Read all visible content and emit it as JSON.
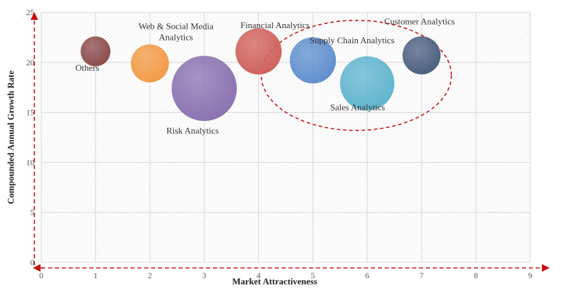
{
  "chart_data": {
    "type": "bubble",
    "xlabel": "Market Attractiveness",
    "ylabel": "Compounded  Annual  Growth Rate",
    "xlim": [
      0,
      9
    ],
    "ylim": [
      0,
      25
    ],
    "x_ticks": [
      0,
      1,
      2,
      3,
      4,
      5,
      6,
      7,
      8,
      9
    ],
    "y_ticks": [
      0,
      5,
      10,
      15,
      20,
      25
    ],
    "grid": true,
    "highlight": {
      "shape": "dashed-ellipse",
      "color": "#cc1111",
      "center_x": 5.8,
      "center_y": 18.7,
      "radius_x": 1.75,
      "radius_y": 5.5
    },
    "points": [
      {
        "label": "Others",
        "x": 1,
        "y": 21.1,
        "size": 0.55,
        "color": "#8a4a4a"
      },
      {
        "label": "Web & Social Media Analytics",
        "x": 2,
        "y": 19.9,
        "size": 0.7,
        "color": "#f39a45"
      },
      {
        "label": "Risk Analytics",
        "x": 3,
        "y": 17.4,
        "size": 1.2,
        "color": "#8a72b0"
      },
      {
        "label": "Financial Analytics",
        "x": 4,
        "y": 21.1,
        "size": 0.85,
        "color": "#d0605a"
      },
      {
        "label": "Supply  Chain Analytics",
        "x": 5,
        "y": 20.2,
        "size": 0.85,
        "color": "#5f8fcf"
      },
      {
        "label": "Sales Analytics",
        "x": 6,
        "y": 17.9,
        "size": 1.0,
        "color": "#5fb5ce"
      },
      {
        "label": "Customer Analytics",
        "x": 7,
        "y": 20.7,
        "size": 0.7,
        "color": "#4c5f80"
      }
    ]
  }
}
